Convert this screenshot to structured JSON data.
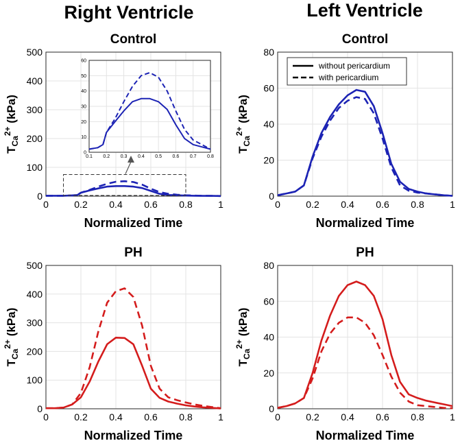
{
  "titles": {
    "right_ventricle": "Right Ventricle",
    "left_ventricle": "Left Ventricle"
  },
  "legend": {
    "solid": "without pericardium",
    "dashed": "with pericardium"
  },
  "colors": {
    "control": "#1c23b4",
    "ph": "#d41c1c",
    "grid": "#e3e3e3"
  },
  "chart_data": [
    {
      "id": "rv_control",
      "type": "line",
      "title": "Control",
      "xlabel": "Normalized Time",
      "ylabel": "T",
      "ylabel_sub": "Ca",
      "ylabel_sup": "2+",
      "ylabel_unit": "(kPa)",
      "xlim": [
        0,
        1
      ],
      "ylim": [
        0,
        500
      ],
      "xticks": [
        "0",
        "0.2",
        "0.4",
        "0.6",
        "0.8",
        "1"
      ],
      "yticks": [
        "0",
        "100",
        "200",
        "300",
        "400",
        "500"
      ],
      "xtick_values": [
        0,
        0.2,
        0.4,
        0.6,
        0.8,
        1
      ],
      "ytick_values": [
        0,
        100,
        200,
        300,
        400,
        500
      ],
      "series": [
        {
          "name": "without pericardium",
          "style": "solid",
          "x": [
            0,
            0.1,
            0.15,
            0.18,
            0.2,
            0.25,
            0.3,
            0.35,
            0.4,
            0.45,
            0.5,
            0.55,
            0.6,
            0.65,
            0.7,
            0.75,
            0.8,
            0.85,
            0.9,
            0.95,
            1
          ],
          "y": [
            1.5,
            1.5,
            2.5,
            4,
            12,
            20,
            27,
            33,
            35,
            35,
            33,
            28,
            18,
            8,
            4,
            3,
            2,
            1.5,
            1,
            1,
            0.5
          ]
        },
        {
          "name": "with pericardium",
          "style": "dashed",
          "x": [
            0,
            0.1,
            0.15,
            0.18,
            0.2,
            0.25,
            0.3,
            0.35,
            0.4,
            0.45,
            0.5,
            0.55,
            0.6,
            0.65,
            0.7,
            0.75,
            0.8,
            0.85,
            0.9,
            0.95,
            1
          ],
          "y": [
            1.5,
            1.5,
            2.5,
            4,
            12,
            22,
            33,
            43,
            50,
            52,
            49,
            40,
            26,
            14,
            8,
            5,
            3,
            2,
            1.5,
            1,
            0.5
          ]
        }
      ],
      "annotation_box": {
        "x": [
          0.1,
          0.8
        ],
        "y": [
          0,
          75
        ]
      }
    },
    {
      "id": "rv_control_inset",
      "type": "line",
      "title": "",
      "xlim": [
        0.1,
        0.8
      ],
      "ylim": [
        0,
        60
      ],
      "xticks": [
        "0.1",
        "0.2",
        "0.3",
        "0.4",
        "0.5",
        "0.6",
        "0.7",
        "0.8"
      ],
      "yticks": [
        "0",
        "10",
        "20",
        "30",
        "40",
        "50",
        "60"
      ],
      "xtick_values": [
        0.1,
        0.2,
        0.3,
        0.4,
        0.5,
        0.6,
        0.7,
        0.8
      ],
      "ytick_values": [
        0,
        10,
        20,
        30,
        40,
        50,
        60
      ],
      "series": [
        {
          "name": "without pericardium",
          "style": "solid",
          "x": [
            0.1,
            0.15,
            0.18,
            0.2,
            0.25,
            0.3,
            0.35,
            0.4,
            0.45,
            0.5,
            0.55,
            0.6,
            0.65,
            0.7,
            0.75,
            0.8
          ],
          "y": [
            2,
            3,
            5,
            13,
            20,
            27,
            33,
            35,
            35,
            33,
            28,
            18,
            9,
            5,
            3.5,
            2
          ]
        },
        {
          "name": "with pericardium",
          "style": "dashed",
          "x": [
            0.1,
            0.15,
            0.18,
            0.2,
            0.25,
            0.3,
            0.35,
            0.4,
            0.45,
            0.5,
            0.55,
            0.6,
            0.65,
            0.7,
            0.75,
            0.8
          ],
          "y": [
            2,
            3,
            5,
            13,
            22,
            33,
            43,
            50,
            52,
            49,
            40,
            27,
            15,
            8,
            5,
            2
          ]
        }
      ]
    },
    {
      "id": "lv_control",
      "type": "line",
      "title": "Control",
      "xlabel": "Normalized Time",
      "ylabel": "T",
      "ylabel_sub": "Ca",
      "ylabel_sup": "2+",
      "ylabel_unit": "(kPa)",
      "xlim": [
        0,
        1
      ],
      "ylim": [
        0,
        80
      ],
      "xticks": [
        "0",
        "0.2",
        "0.4",
        "0.6",
        "0.8",
        "1"
      ],
      "yticks": [
        "0",
        "20",
        "40",
        "60",
        "80"
      ],
      "xtick_values": [
        0,
        0.2,
        0.4,
        0.6,
        0.8,
        1
      ],
      "ytick_values": [
        0,
        20,
        40,
        60,
        80
      ],
      "legend_position": "top-left",
      "series": [
        {
          "name": "without pericardium",
          "style": "solid",
          "x": [
            0,
            0.05,
            0.1,
            0.15,
            0.2,
            0.25,
            0.3,
            0.35,
            0.4,
            0.45,
            0.5,
            0.55,
            0.6,
            0.65,
            0.7,
            0.75,
            0.8,
            0.85,
            0.9,
            0.95,
            1
          ],
          "y": [
            0.5,
            1.5,
            2.5,
            6,
            22,
            35,
            44,
            51,
            56,
            59,
            58,
            50,
            35,
            18,
            8,
            4,
            2.5,
            1.5,
            1,
            0.5,
            0.2
          ]
        },
        {
          "name": "with pericardium",
          "style": "dashed",
          "x": [
            0,
            0.05,
            0.1,
            0.15,
            0.2,
            0.25,
            0.3,
            0.35,
            0.4,
            0.45,
            0.5,
            0.55,
            0.6,
            0.65,
            0.7,
            0.75,
            0.8,
            0.85,
            0.9,
            0.95,
            1
          ],
          "y": [
            0.5,
            1.5,
            2.5,
            6,
            21,
            33,
            42,
            49,
            53,
            55,
            54,
            46,
            32,
            16,
            6,
            3,
            2,
            1.5,
            1,
            0.5,
            0.2
          ]
        }
      ]
    },
    {
      "id": "rv_ph",
      "type": "line",
      "title": "PH",
      "xlabel": "Normalized Time",
      "ylabel": "T",
      "ylabel_sub": "Ca",
      "ylabel_sup": "2+",
      "ylabel_unit": "(kPa)",
      "xlim": [
        0,
        1
      ],
      "ylim": [
        0,
        500
      ],
      "xticks": [
        "0",
        "0.2",
        "0.4",
        "0.6",
        "0.8",
        "1"
      ],
      "yticks": [
        "0",
        "100",
        "200",
        "300",
        "400",
        "500"
      ],
      "xtick_values": [
        0,
        0.2,
        0.4,
        0.6,
        0.8,
        1
      ],
      "ytick_values": [
        0,
        100,
        200,
        300,
        400,
        500
      ],
      "series": [
        {
          "name": "without pericardium",
          "style": "solid",
          "x": [
            0,
            0.05,
            0.1,
            0.15,
            0.2,
            0.25,
            0.3,
            0.35,
            0.4,
            0.45,
            0.5,
            0.55,
            0.6,
            0.65,
            0.7,
            0.75,
            0.8,
            0.85,
            0.9,
            0.95,
            1
          ],
          "y": [
            2,
            2,
            4,
            15,
            40,
            95,
            165,
            225,
            248,
            247,
            225,
            150,
            70,
            38,
            25,
            18,
            12,
            8,
            5,
            3,
            1
          ]
        },
        {
          "name": "with pericardium",
          "style": "dashed",
          "x": [
            0,
            0.05,
            0.1,
            0.15,
            0.2,
            0.25,
            0.3,
            0.35,
            0.4,
            0.45,
            0.5,
            0.55,
            0.6,
            0.65,
            0.7,
            0.75,
            0.8,
            0.85,
            0.9,
            0.95,
            1
          ],
          "y": [
            2,
            2,
            4,
            15,
            55,
            145,
            270,
            370,
            410,
            420,
            390,
            290,
            150,
            70,
            40,
            30,
            22,
            15,
            10,
            6,
            2
          ]
        }
      ]
    },
    {
      "id": "lv_ph",
      "type": "line",
      "title": "PH",
      "xlabel": "Normalized Time",
      "ylabel": "T",
      "ylabel_sub": "Ca",
      "ylabel_sup": "2+",
      "ylabel_unit": "(kPa)",
      "xlim": [
        0,
        1
      ],
      "ylim": [
        0,
        80
      ],
      "xticks": [
        "0",
        "0.2",
        "0.4",
        "0.6",
        "0.8",
        "1"
      ],
      "yticks": [
        "0",
        "20",
        "40",
        "60",
        "80"
      ],
      "xtick_values": [
        0,
        0.2,
        0.4,
        0.6,
        0.8,
        1
      ],
      "ytick_values": [
        0,
        20,
        40,
        60,
        80
      ],
      "series": [
        {
          "name": "without pericardium",
          "style": "solid",
          "x": [
            0,
            0.05,
            0.1,
            0.15,
            0.2,
            0.25,
            0.3,
            0.35,
            0.4,
            0.45,
            0.5,
            0.55,
            0.6,
            0.65,
            0.7,
            0.75,
            0.8,
            0.85,
            0.9,
            0.95,
            1
          ],
          "y": [
            0.5,
            1.5,
            3,
            6,
            20,
            38,
            52,
            63,
            69,
            71,
            69,
            63,
            50,
            30,
            15,
            8,
            6,
            4.5,
            3.5,
            2.5,
            1.5
          ]
        },
        {
          "name": "with pericardium",
          "style": "dashed",
          "x": [
            0,
            0.05,
            0.1,
            0.15,
            0.2,
            0.25,
            0.3,
            0.35,
            0.4,
            0.45,
            0.5,
            0.55,
            0.6,
            0.65,
            0.7,
            0.75,
            0.8,
            0.85,
            0.9,
            0.95,
            1
          ],
          "y": [
            0.5,
            1.5,
            3,
            6,
            17,
            32,
            42,
            48,
            51,
            51,
            48,
            41,
            30,
            18,
            9,
            4,
            2,
            1.5,
            1,
            0.5,
            0.3
          ]
        }
      ]
    }
  ]
}
